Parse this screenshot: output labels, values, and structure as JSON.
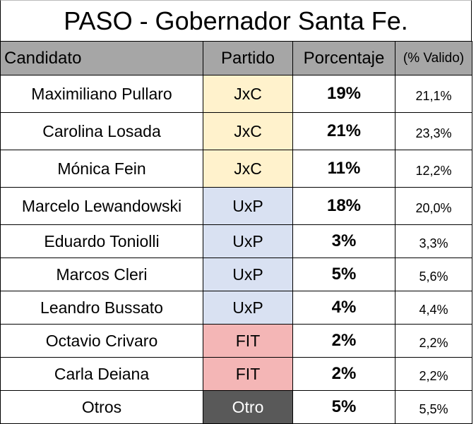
{
  "title": "PASO - Gobernador Santa Fe.",
  "chart_data": {
    "type": "table",
    "title": "PASO - Gobernador Santa Fe.",
    "columns": [
      "Candidato",
      "Partido",
      "Porcentaje",
      "(% Valido)"
    ],
    "rows": [
      {
        "candidato": "Maximiliano Pullaro",
        "partido": "JxC",
        "porcentaje": "19%",
        "valido": "21,1%"
      },
      {
        "candidato": "Carolina Losada",
        "partido": "JxC",
        "porcentaje": "21%",
        "valido": "23,3%"
      },
      {
        "candidato": "Mónica Fein",
        "partido": "JxC",
        "porcentaje": "11%",
        "valido": "12,2%"
      },
      {
        "candidato": "Marcelo Lewandowski",
        "partido": "UxP",
        "porcentaje": "18%",
        "valido": "20,0%"
      },
      {
        "candidato": "Eduardo Toniolli",
        "partido": "UxP",
        "porcentaje": "3%",
        "valido": "3,3%"
      },
      {
        "candidato": "Marcos Cleri",
        "partido": "UxP",
        "porcentaje": "5%",
        "valido": "5,6%"
      },
      {
        "candidato": "Leandro Bussato",
        "partido": "UxP",
        "porcentaje": "4%",
        "valido": "4,4%"
      },
      {
        "candidato": "Octavio Crivaro",
        "partido": "FIT",
        "porcentaje": "2%",
        "valido": "2,2%"
      },
      {
        "candidato": "Carla Deiana",
        "partido": "FIT",
        "porcentaje": "2%",
        "valido": "2,2%"
      },
      {
        "candidato": "Otros",
        "partido": "Otro",
        "porcentaje": "5%",
        "valido": "5,5%"
      }
    ],
    "party_colors": {
      "JxC": "#fff2cc",
      "UxP": "#d9e1f2",
      "FIT": "#f4b6b6",
      "Otro": "#595959"
    },
    "header_color": "#a6a6a6"
  }
}
